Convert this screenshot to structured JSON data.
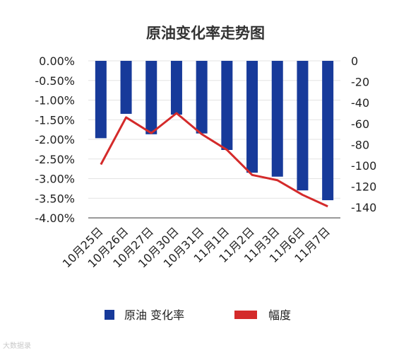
{
  "chart_data": {
    "type": "bar",
    "title": "原油变化率走势图",
    "categories": [
      "10月25日",
      "10月26日",
      "10月27日",
      "10月30日",
      "10月31日",
      "11月1日",
      "11月2日",
      "11月3日",
      "11月6日",
      "11月7日"
    ],
    "series": [
      {
        "name": "原油 变化率",
        "type": "bar",
        "axis": "left",
        "color": "#173A9A",
        "values": [
          -1.97,
          -1.35,
          -1.87,
          -1.37,
          -1.85,
          -2.27,
          -2.85,
          -2.95,
          -3.3,
          -3.55
        ]
      },
      {
        "name": "幅度",
        "type": "line",
        "axis": "right",
        "color": "#D42A2A",
        "values": [
          -99,
          -54,
          -69,
          -50,
          -70,
          -85,
          -109,
          -114,
          -128,
          -139
        ]
      }
    ],
    "y_left": {
      "min": -4.0,
      "max": 0.0,
      "ticks": [
        "0.00%",
        "-0.50%",
        "-1.00%",
        "-1.50%",
        "-2.00%",
        "-2.50%",
        "-3.00%",
        "-3.50%",
        "-4.00%"
      ]
    },
    "y_right": {
      "min": -150,
      "max": 0,
      "ticks": [
        "0",
        "-20",
        "-40",
        "-60",
        "-80",
        "-100",
        "-120",
        "-140"
      ]
    },
    "grid": true,
    "legend": "bottom"
  },
  "watermark": "大数据录"
}
